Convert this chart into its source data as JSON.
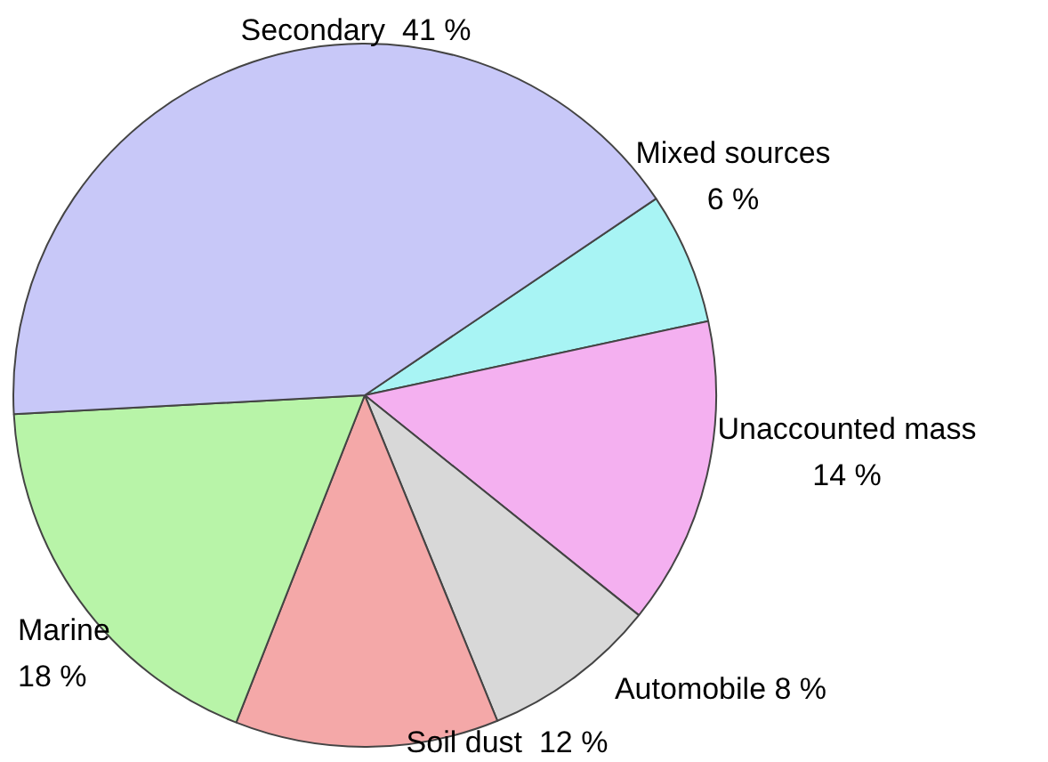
{
  "chart_data": {
    "type": "pie",
    "categories": [
      "Mixed sources",
      "Unaccounted mass",
      "Automobile",
      "Soil dust",
      "Marine",
      "Secondary"
    ],
    "values": [
      6,
      14,
      8,
      12,
      18,
      41
    ],
    "value_labels": [
      "6 %",
      "14 %",
      "8 %",
      "12 %",
      "18 %",
      "41 %"
    ],
    "colors": [
      "#a8f4f4",
      "#f4b0f0",
      "#d8d8d8",
      "#f4a8a8",
      "#b8f4a8",
      "#c8c8f8"
    ],
    "legend": false
  }
}
